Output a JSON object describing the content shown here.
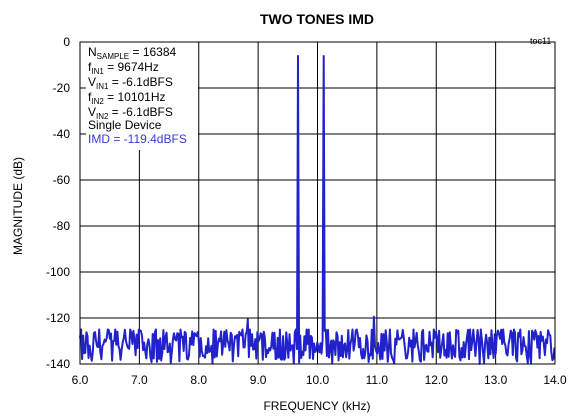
{
  "chart_data": {
    "type": "line",
    "title": "TWO TONES IMD",
    "tag": "toc11",
    "xlabel": "FREQUENCY (kHz)",
    "ylabel": "MAGNITUDE (dB)",
    "xlim": [
      6.0,
      14.0
    ],
    "ylim": [
      -140,
      0
    ],
    "x_ticks": [
      "6.0",
      "7.0",
      "8.0",
      "9.0",
      "10.0",
      "11.0",
      "12.0",
      "13.0",
      "14.0"
    ],
    "y_ticks": [
      "0",
      "-20",
      "-40",
      "-60",
      "-80",
      "-100",
      "-120",
      "-140"
    ],
    "grid": true,
    "line_color": "#2222cc",
    "tones": [
      {
        "freq_khz": 9.674,
        "level_dbfs": -6.1
      },
      {
        "freq_khz": 10.101,
        "level_dbfs": -6.1
      }
    ],
    "spurs": [
      {
        "freq_khz": 8.82,
        "level_dbfs": -120.5
      },
      {
        "freq_khz": 10.95,
        "level_dbfs": -119.4
      }
    ],
    "noise_floor_db": -131,
    "noise_floor_range_db": [
      -140,
      -125
    ],
    "annotations": {
      "nsample": {
        "prefix": "N",
        "sub": "SAMPLE",
        "value": " = 16384"
      },
      "fin1": {
        "prefix": "f",
        "sub": "IN1",
        "value": " = 9674Hz"
      },
      "vin1": {
        "prefix": "V",
        "sub": "IN1",
        "value": " = -6.1dBFS"
      },
      "fin2": {
        "prefix": "f",
        "sub": "IN2",
        "value": " = 10101Hz"
      },
      "vin2": {
        "prefix": "V",
        "sub": "IN2",
        "value": " = -6.1dBFS"
      },
      "device": "Single Device",
      "imd": "IMD = -119.4dBFS"
    }
  }
}
